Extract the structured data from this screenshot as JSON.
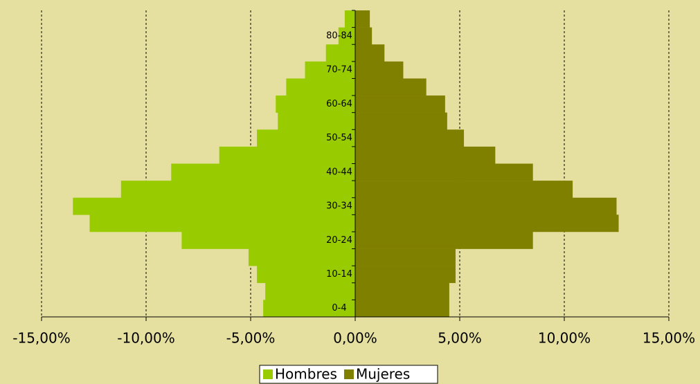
{
  "chart_data": {
    "type": "bar",
    "orientation": "horizontal",
    "categories": [
      "0-4",
      null,
      "10-14",
      null,
      "20-24",
      null,
      "30-34",
      null,
      "40-44",
      null,
      "50-54",
      null,
      "60-64",
      null,
      "70-74",
      null,
      "80-84",
      null
    ],
    "series": [
      {
        "name": "Hombres",
        "color": "#99cc00",
        "values": [
          -4.4,
          -4.3,
          -4.7,
          -5.1,
          -8.3,
          -12.7,
          -13.5,
          -11.2,
          -8.8,
          -6.5,
          -4.7,
          -3.7,
          -3.8,
          -3.3,
          -2.4,
          -1.4,
          -0.8,
          -0.5
        ]
      },
      {
        "name": "Mujeres",
        "color": "#808000",
        "values": [
          4.5,
          4.5,
          4.8,
          4.8,
          8.5,
          12.6,
          12.5,
          10.4,
          8.5,
          6.7,
          5.2,
          4.4,
          4.3,
          3.4,
          2.3,
          1.4,
          0.8,
          0.7
        ]
      }
    ],
    "xlim": [
      -15,
      15
    ],
    "xticks": [
      {
        "value": -15,
        "label": "-15,00%"
      },
      {
        "value": -10,
        "label": "-10,00%"
      },
      {
        "value": -5,
        "label": "-5,00%"
      },
      {
        "value": 0,
        "label": "0,00%"
      },
      {
        "value": 5,
        "label": "5,00%"
      },
      {
        "value": 10,
        "label": "10,00%"
      },
      {
        "value": 15,
        "label": "15,00%"
      }
    ],
    "grid": true,
    "legend": "bottom"
  }
}
